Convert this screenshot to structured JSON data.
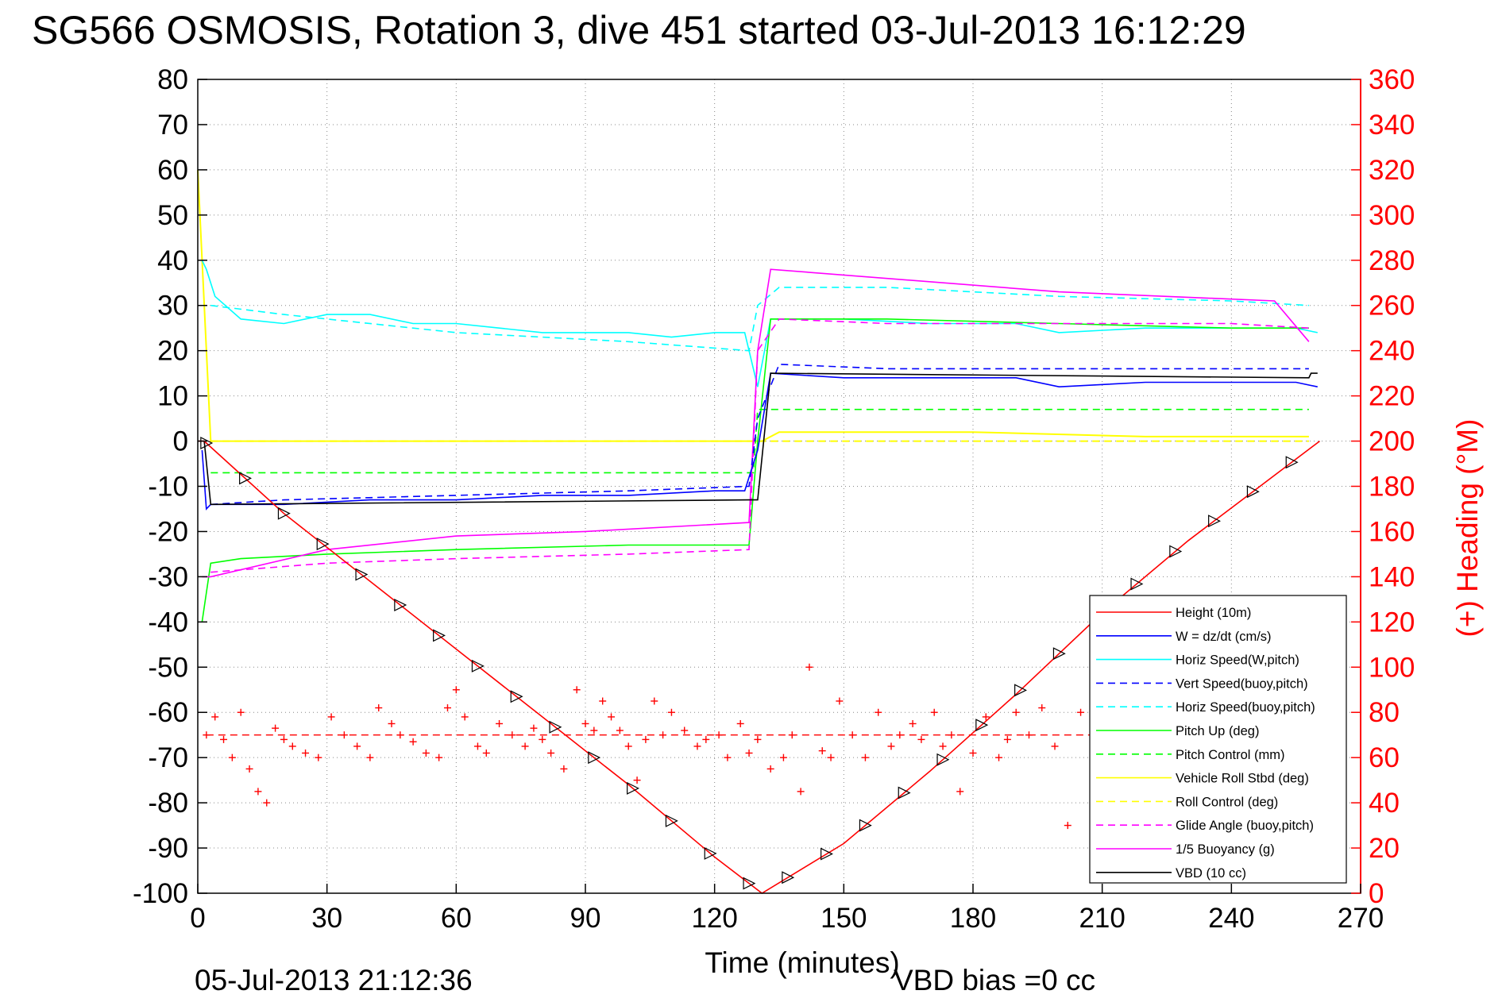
{
  "title": "SG566 OSMOSIS, Rotation 3, dive 451 started 03-Jul-2013 16:12:29",
  "footer": {
    "timestamp": "05-Jul-2013 21:12:36",
    "vbd_bias": "VBD bias =0 cc"
  },
  "chart_data": {
    "type": "line",
    "title": "SG566 OSMOSIS, Rotation 3, dive 451 started 03-Jul-2013 16:12:29",
    "xlabel": "Time (minutes)",
    "ylabel": "",
    "y2label": "(+) Heading (°M)",
    "xlim": [
      0,
      270
    ],
    "ylim": [
      -100,
      80
    ],
    "y2lim": [
      0,
      360
    ],
    "xticks": [
      0,
      30,
      60,
      90,
      120,
      150,
      180,
      210,
      240,
      270
    ],
    "yticks": [
      80,
      70,
      60,
      50,
      40,
      30,
      20,
      10,
      0,
      -10,
      -20,
      -30,
      -40,
      -50,
      -60,
      -70,
      -80,
      -90,
      -100
    ],
    "y2ticks": [
      360,
      340,
      320,
      300,
      280,
      260,
      240,
      220,
      200,
      180,
      160,
      140,
      120,
      100,
      80,
      60,
      40,
      20,
      0
    ],
    "grid": true,
    "legend_position": "lower-right",
    "colors": {
      "red": "#ff0000",
      "blue": "#0000ff",
      "cyan": "#00ffff",
      "green": "#00ff00",
      "yellow": "#ffff00",
      "magenta": "#ff00ff",
      "black": "#000000"
    },
    "series": [
      {
        "name": "Height (10m)",
        "color": "#ff0000",
        "style": "solid",
        "x": [
          0,
          1.5,
          20,
          40,
          60,
          80,
          100,
          120,
          131,
          150,
          170,
          190,
          210,
          230,
          260.5
        ],
        "y": [
          0,
          0,
          -16,
          -31,
          -46,
          -61,
          -76,
          -92,
          -100,
          -89,
          -73,
          -56,
          -38,
          -22,
          0
        ]
      },
      {
        "name": "W = dz/dt (cm/s)",
        "color": "#0000ff",
        "style": "solid",
        "x": [
          1,
          2,
          3,
          10,
          20,
          40,
          60,
          80,
          100,
          120,
          127,
          130,
          133,
          150,
          170,
          190,
          200,
          220,
          240,
          255,
          260
        ],
        "y": [
          -2,
          -15,
          -14,
          -14,
          -14,
          -13,
          -13,
          -12,
          -12,
          -11,
          -11,
          -2,
          15,
          14,
          14,
          14,
          12,
          13,
          13,
          13,
          12
        ]
      },
      {
        "name": "Horiz Speed(W,pitch)",
        "color": "#00ffff",
        "style": "solid",
        "x": [
          1,
          2,
          4,
          10,
          20,
          30,
          40,
          50,
          60,
          70,
          80,
          90,
          100,
          110,
          120,
          127,
          130,
          133,
          150,
          170,
          190,
          200,
          220,
          240,
          255,
          260
        ],
        "y": [
          40,
          38,
          32,
          27,
          26,
          28,
          28,
          26,
          26,
          25,
          24,
          24,
          24,
          23,
          24,
          24,
          12,
          27,
          27,
          26,
          26,
          24,
          25,
          25,
          25,
          24
        ]
      },
      {
        "name": "Vert Speed(buoy,pitch)",
        "color": "#0000ff",
        "style": "dashed",
        "x": [
          3,
          20,
          60,
          100,
          128,
          130,
          135,
          160,
          200,
          240,
          258
        ],
        "y": [
          -14,
          -13,
          -12,
          -11,
          -10,
          5,
          17,
          16,
          16,
          16,
          16
        ]
      },
      {
        "name": "Horiz Speed(buoy,pitch)",
        "color": "#00ffff",
        "style": "dashed",
        "x": [
          3,
          20,
          60,
          100,
          128,
          130,
          135,
          160,
          200,
          240,
          258
        ],
        "y": [
          30,
          28,
          24,
          22,
          20,
          30,
          34,
          34,
          32,
          31,
          30
        ]
      },
      {
        "name": "Pitch Up (deg)",
        "color": "#00ff00",
        "style": "solid",
        "x": [
          1,
          3,
          10,
          30,
          60,
          100,
          128,
          130,
          133,
          160,
          200,
          240,
          258
        ],
        "y": [
          -40,
          -27,
          -26,
          -25,
          -24,
          -23,
          -23,
          0,
          27,
          27,
          26,
          25,
          25
        ]
      },
      {
        "name": "Pitch Control (mm)",
        "color": "#00ff00",
        "style": "dashed",
        "x": [
          3,
          128,
          129,
          130,
          258
        ],
        "y": [
          -7,
          -7,
          -7,
          7,
          7
        ]
      },
      {
        "name": "Vehicle Roll Stbd (deg)",
        "color": "#ffff00",
        "style": "solid",
        "x": [
          0,
          3,
          10,
          50,
          100,
          128,
          131,
          135,
          180,
          220,
          258
        ],
        "y": [
          60,
          0,
          0,
          0,
          0,
          0,
          0,
          2,
          2,
          1,
          1
        ]
      },
      {
        "name": "Roll Control (deg)",
        "color": "#ffff00",
        "style": "dashed",
        "x": [
          3,
          128,
          131,
          258
        ],
        "y": [
          0,
          0,
          0,
          0
        ]
      },
      {
        "name": "Glide Angle (buoy,pitch)",
        "color": "#ff00ff",
        "style": "dashed",
        "x": [
          3,
          30,
          60,
          100,
          128,
          130,
          135,
          160,
          200,
          240,
          258
        ],
        "y": [
          -29,
          -27,
          -26,
          -25,
          -24,
          20,
          27,
          26,
          26,
          26,
          25
        ]
      },
      {
        "name": "1/5 Buoyancy (g)",
        "color": "#ff00ff",
        "style": "solid",
        "x": [
          1,
          3,
          30,
          60,
          90,
          128,
          130,
          133,
          200,
          250,
          258
        ],
        "y": [
          -30,
          -30,
          -24,
          -21,
          -20,
          -18,
          20,
          38,
          33,
          31,
          22
        ]
      },
      {
        "name": "VBD (10 cc)",
        "color": "#000000",
        "style": "solid",
        "x": [
          1.5,
          3,
          128,
          130,
          133,
          258,
          258.5,
          260
        ],
        "y": [
          0,
          -14,
          -13,
          -13,
          15,
          14,
          15,
          15
        ]
      }
    ],
    "heading": {
      "name": "Heading",
      "axis": "right",
      "marker": "+",
      "color": "#ff0000",
      "target": 70,
      "x": [
        2,
        4,
        6,
        8,
        10,
        12,
        14,
        16,
        18,
        20,
        22,
        25,
        28,
        31,
        34,
        37,
        40,
        42,
        45,
        47,
        50,
        53,
        56,
        58,
        60,
        62,
        65,
        67,
        70,
        73,
        76,
        78,
        80,
        82,
        85,
        88,
        90,
        92,
        94,
        96,
        98,
        100,
        102,
        104,
        106,
        108,
        110,
        113,
        116,
        118,
        121,
        123,
        126,
        128,
        130,
        133,
        136,
        138,
        140,
        142,
        145,
        147,
        149,
        152,
        155,
        158,
        161,
        163,
        166,
        168,
        171,
        173,
        175,
        177,
        180,
        183,
        186,
        188,
        190,
        193,
        196,
        199,
        202,
        205
      ],
      "y": [
        70,
        78,
        68,
        60,
        80,
        55,
        45,
        40,
        73,
        68,
        65,
        62,
        60,
        78,
        70,
        65,
        60,
        82,
        75,
        70,
        67,
        62,
        60,
        82,
        90,
        78,
        65,
        62,
        75,
        70,
        65,
        73,
        68,
        62,
        55,
        90,
        75,
        72,
        85,
        78,
        72,
        65,
        50,
        68,
        85,
        70,
        80,
        72,
        65,
        68,
        70,
        60,
        75,
        62,
        68,
        55,
        60,
        70,
        45,
        100,
        63,
        60,
        85,
        70,
        60,
        80,
        65,
        70,
        75,
        68,
        80,
        65,
        70,
        45,
        62,
        78,
        60,
        68,
        80,
        70,
        82,
        65,
        30,
        80
      ]
    }
  }
}
